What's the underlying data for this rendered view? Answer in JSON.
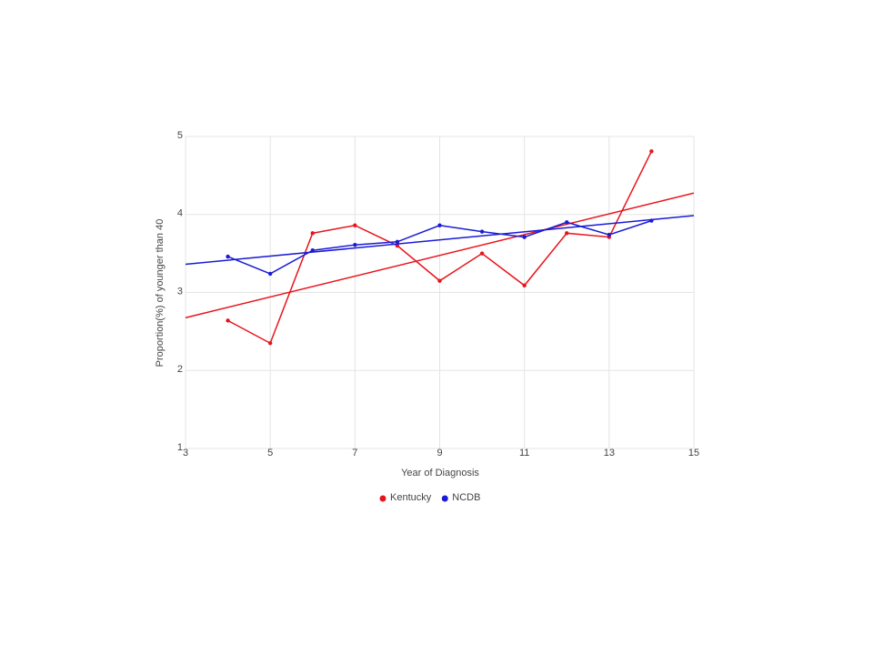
{
  "chart_data": {
    "type": "line",
    "x_label": "Year of Diagnosis",
    "y_label": "Proportion(%) of younger than 40",
    "x": [
      4,
      5,
      6,
      7,
      8,
      9,
      10,
      11,
      12,
      13,
      14
    ],
    "series": [
      {
        "name": "Kentucky",
        "color": "#e8141c",
        "values": [
          2.64,
          2.35,
          3.76,
          3.86,
          3.6,
          3.15,
          3.5,
          3.09,
          3.76,
          3.71,
          4.81
        ],
        "trendline": true
      },
      {
        "name": "NCDB",
        "color": "#1a1ad6",
        "values": [
          3.46,
          3.24,
          3.54,
          3.61,
          3.65,
          3.86,
          3.78,
          3.71,
          3.9,
          3.74,
          3.92
        ],
        "trendline": true
      }
    ],
    "xlim": [
      3,
      15
    ],
    "xticks": [
      3,
      5,
      7,
      9,
      11,
      13,
      15
    ],
    "ylim": [
      1,
      5
    ],
    "yticks": [
      1,
      2,
      3,
      4,
      5
    ],
    "grid": true,
    "legend": "bottom"
  }
}
